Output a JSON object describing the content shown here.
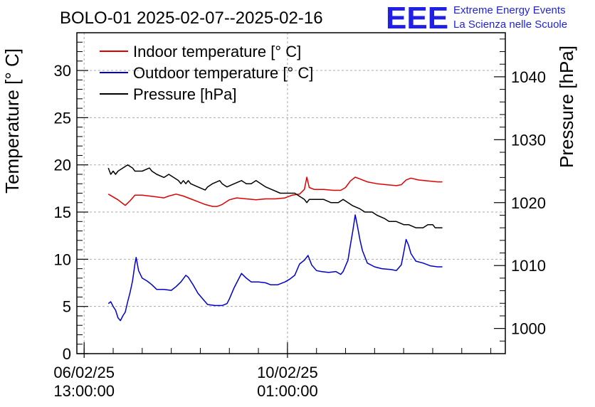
{
  "title": "BOLO-01 2025-02-07--2025-02-16",
  "brand": {
    "logo_text": "EEE",
    "line1": "Extreme Energy Events",
    "line2": "La Scienza nelle Scuole",
    "color": "#1f1fe6"
  },
  "chart_data": {
    "type": "line",
    "title": "BOLO-01 2025-02-07--2025-02-16",
    "ylabel": "Temperature [° C]",
    "y2label": "Pressure [hPa]",
    "xlabel": "",
    "xlim": [
      "2025-02-06T10:00",
      "2025-02-13T19:00"
    ],
    "ylim": [
      0,
      34
    ],
    "y2lim": [
      996,
      1047
    ],
    "grid": true,
    "legend_position": "top-left",
    "x_ticks": [
      {
        "time": "2025-02-06T13:00",
        "line1": "06/02/25",
        "line2": "13:00:00"
      },
      {
        "time": "2025-02-10T01:00",
        "line1": "10/02/25",
        "line2": "01:00:00"
      }
    ],
    "y_ticks": [
      0,
      5,
      10,
      15,
      20,
      25,
      30
    ],
    "y2_ticks": [
      1000,
      1010,
      1020,
      1030,
      1040
    ],
    "series": [
      {
        "name": "Indoor temperature [° C]",
        "axis": "left",
        "color": "#e00000",
        "points": [
          [
            "2025-02-06T23:00",
            16.9
          ],
          [
            "2025-02-07T01:00",
            16.6
          ],
          [
            "2025-02-07T03:00",
            16.3
          ],
          [
            "2025-02-07T05:00",
            15.9
          ],
          [
            "2025-02-07T06:00",
            15.7
          ],
          [
            "2025-02-07T08:00",
            16.2
          ],
          [
            "2025-02-07T10:00",
            16.8
          ],
          [
            "2025-02-07T13:00",
            16.8
          ],
          [
            "2025-02-07T16:00",
            16.7
          ],
          [
            "2025-02-07T19:00",
            16.6
          ],
          [
            "2025-02-07T22:00",
            16.5
          ],
          [
            "2025-02-08T00:00",
            16.7
          ],
          [
            "2025-02-08T03:00",
            16.9
          ],
          [
            "2025-02-08T06:00",
            16.7
          ],
          [
            "2025-02-08T09:00",
            16.4
          ],
          [
            "2025-02-08T12:00",
            16.1
          ],
          [
            "2025-02-08T15:00",
            15.8
          ],
          [
            "2025-02-08T18:00",
            15.6
          ],
          [
            "2025-02-08T20:00",
            15.6
          ],
          [
            "2025-02-08T22:00",
            15.8
          ],
          [
            "2025-02-09T01:00",
            16.3
          ],
          [
            "2025-02-09T04:00",
            16.5
          ],
          [
            "2025-02-09T08:00",
            16.4
          ],
          [
            "2025-02-09T12:00",
            16.3
          ],
          [
            "2025-02-09T16:00",
            16.4
          ],
          [
            "2025-02-09T20:00",
            16.4
          ],
          [
            "2025-02-10T00:00",
            16.5
          ],
          [
            "2025-02-10T03:00",
            16.8
          ],
          [
            "2025-02-10T06:00",
            16.9
          ],
          [
            "2025-02-10T08:00",
            17.4
          ],
          [
            "2025-02-10T09:00",
            18.7
          ],
          [
            "2025-02-10T10:00",
            17.6
          ],
          [
            "2025-02-10T12:00",
            17.4
          ],
          [
            "2025-02-10T16:00",
            17.4
          ],
          [
            "2025-02-10T20:00",
            17.3
          ],
          [
            "2025-02-10T23:00",
            17.3
          ],
          [
            "2025-02-11T01:00",
            17.6
          ],
          [
            "2025-02-11T03:00",
            18.3
          ],
          [
            "2025-02-11T05:00",
            18.7
          ],
          [
            "2025-02-11T07:00",
            18.5
          ],
          [
            "2025-02-11T10:00",
            18.2
          ],
          [
            "2025-02-11T14:00",
            18.0
          ],
          [
            "2025-02-11T18:00",
            17.9
          ],
          [
            "2025-02-11T22:00",
            17.8
          ],
          [
            "2025-02-12T00:00",
            17.9
          ],
          [
            "2025-02-12T02:00",
            18.4
          ],
          [
            "2025-02-12T04:00",
            18.6
          ],
          [
            "2025-02-12T07:00",
            18.4
          ],
          [
            "2025-02-12T11:00",
            18.3
          ],
          [
            "2025-02-12T15:00",
            18.2
          ],
          [
            "2025-02-12T17:00",
            18.2
          ]
        ]
      },
      {
        "name": "Outdoor temperature [° C]",
        "axis": "left",
        "color": "#0000cc",
        "points": [
          [
            "2025-02-06T23:00",
            5.3
          ],
          [
            "2025-02-07T00:00",
            5.5
          ],
          [
            "2025-02-07T01:00",
            5.0
          ],
          [
            "2025-02-07T02:00",
            4.6
          ],
          [
            "2025-02-07T03:00",
            3.8
          ],
          [
            "2025-02-07T04:00",
            3.5
          ],
          [
            "2025-02-07T05:00",
            4.0
          ],
          [
            "2025-02-07T06:00",
            4.4
          ],
          [
            "2025-02-07T07:00",
            5.5
          ],
          [
            "2025-02-07T08:00",
            6.5
          ],
          [
            "2025-02-07T09:00",
            7.7
          ],
          [
            "2025-02-07T10:00",
            9.5
          ],
          [
            "2025-02-07T10:30",
            10.2
          ],
          [
            "2025-02-07T11:30",
            8.8
          ],
          [
            "2025-02-07T13:00",
            8.0
          ],
          [
            "2025-02-07T15:00",
            7.7
          ],
          [
            "2025-02-07T17:00",
            7.3
          ],
          [
            "2025-02-07T19:00",
            6.8
          ],
          [
            "2025-02-07T22:00",
            6.8
          ],
          [
            "2025-02-08T01:00",
            6.7
          ],
          [
            "2025-02-08T03:00",
            7.1
          ],
          [
            "2025-02-08T05:00",
            7.6
          ],
          [
            "2025-02-08T07:00",
            8.3
          ],
          [
            "2025-02-08T08:00",
            8.1
          ],
          [
            "2025-02-08T10:00",
            7.3
          ],
          [
            "2025-02-08T12:00",
            6.4
          ],
          [
            "2025-02-08T14:00",
            5.8
          ],
          [
            "2025-02-08T16:00",
            5.2
          ],
          [
            "2025-02-08T19:00",
            5.1
          ],
          [
            "2025-02-08T22:00",
            5.1
          ],
          [
            "2025-02-09T00:00",
            5.3
          ],
          [
            "2025-02-09T01:00",
            5.8
          ],
          [
            "2025-02-09T03:00",
            7.0
          ],
          [
            "2025-02-09T05:00",
            8.0
          ],
          [
            "2025-02-09T06:00",
            8.5
          ],
          [
            "2025-02-09T08:00",
            8.0
          ],
          [
            "2025-02-09T10:00",
            7.6
          ],
          [
            "2025-02-09T13:00",
            7.6
          ],
          [
            "2025-02-09T16:00",
            7.5
          ],
          [
            "2025-02-09T18:00",
            7.3
          ],
          [
            "2025-02-09T21:00",
            7.3
          ],
          [
            "2025-02-10T00:00",
            7.6
          ],
          [
            "2025-02-10T02:00",
            7.9
          ],
          [
            "2025-02-10T04:00",
            8.3
          ],
          [
            "2025-02-10T06:00",
            9.5
          ],
          [
            "2025-02-10T08:00",
            9.9
          ],
          [
            "2025-02-10T09:30",
            10.4
          ],
          [
            "2025-02-10T11:00",
            9.4
          ],
          [
            "2025-02-10T13:00",
            8.8
          ],
          [
            "2025-02-10T15:00",
            8.7
          ],
          [
            "2025-02-10T18:00",
            8.6
          ],
          [
            "2025-02-10T21:00",
            8.7
          ],
          [
            "2025-02-10T23:00",
            8.4
          ],
          [
            "2025-02-11T00:00",
            8.7
          ],
          [
            "2025-02-11T02:00",
            9.9
          ],
          [
            "2025-02-11T03:00",
            11.5
          ],
          [
            "2025-02-11T04:00",
            13.0
          ],
          [
            "2025-02-11T05:00",
            14.7
          ],
          [
            "2025-02-11T06:00",
            13.4
          ],
          [
            "2025-02-11T07:00",
            12.0
          ],
          [
            "2025-02-11T08:00",
            10.9
          ],
          [
            "2025-02-11T10:00",
            9.6
          ],
          [
            "2025-02-11T13:00",
            9.2
          ],
          [
            "2025-02-11T16:00",
            9.0
          ],
          [
            "2025-02-11T20:00",
            8.9
          ],
          [
            "2025-02-11T22:00",
            8.8
          ],
          [
            "2025-02-12T00:00",
            9.4
          ],
          [
            "2025-02-12T01:00",
            10.7
          ],
          [
            "2025-02-12T02:00",
            12.1
          ],
          [
            "2025-02-12T03:00",
            11.5
          ],
          [
            "2025-02-12T04:00",
            10.6
          ],
          [
            "2025-02-12T06:00",
            9.8
          ],
          [
            "2025-02-12T09:00",
            9.6
          ],
          [
            "2025-02-12T12:00",
            9.3
          ],
          [
            "2025-02-12T15:00",
            9.2
          ],
          [
            "2025-02-12T17:00",
            9.2
          ]
        ]
      },
      {
        "name": "Pressure [hPa]",
        "axis": "right",
        "color": "#000000",
        "points": [
          [
            "2025-02-06T23:00",
            1025.5
          ],
          [
            "2025-02-07T00:00",
            1024.5
          ],
          [
            "2025-02-07T01:00",
            1025.0
          ],
          [
            "2025-02-07T02:00",
            1024.5
          ],
          [
            "2025-02-07T03:00",
            1025.0
          ],
          [
            "2025-02-07T05:00",
            1025.5
          ],
          [
            "2025-02-07T07:00",
            1026.0
          ],
          [
            "2025-02-07T09:00",
            1025.5
          ],
          [
            "2025-02-07T10:00",
            1025.0
          ],
          [
            "2025-02-07T13:00",
            1025.0
          ],
          [
            "2025-02-07T16:00",
            1025.5
          ],
          [
            "2025-02-07T17:00",
            1025.0
          ],
          [
            "2025-02-07T19:00",
            1024.5
          ],
          [
            "2025-02-07T22:00",
            1024.0
          ],
          [
            "2025-02-08T00:00",
            1024.5
          ],
          [
            "2025-02-08T02:00",
            1024.0
          ],
          [
            "2025-02-08T04:00",
            1023.5
          ],
          [
            "2025-02-08T05:00",
            1023.0
          ],
          [
            "2025-02-08T06:00",
            1023.5
          ],
          [
            "2025-02-08T07:00",
            1023.0
          ],
          [
            "2025-02-08T08:00",
            1023.5
          ],
          [
            "2025-02-08T09:00",
            1023.0
          ],
          [
            "2025-02-08T12:00",
            1022.5
          ],
          [
            "2025-02-08T15:00",
            1022.0
          ],
          [
            "2025-02-08T16:00",
            1022.5
          ],
          [
            "2025-02-08T18:00",
            1023.0
          ],
          [
            "2025-02-08T21:00",
            1023.5
          ],
          [
            "2025-02-08T22:00",
            1023.0
          ],
          [
            "2025-02-09T00:00",
            1022.5
          ],
          [
            "2025-02-09T03:00",
            1023.0
          ],
          [
            "2025-02-09T06:00",
            1023.5
          ],
          [
            "2025-02-09T08:00",
            1023.0
          ],
          [
            "2025-02-09T10:00",
            1023.0
          ],
          [
            "2025-02-09T12:00",
            1023.5
          ],
          [
            "2025-02-09T14:00",
            1023.0
          ],
          [
            "2025-02-09T16:00",
            1022.5
          ],
          [
            "2025-02-09T19:00",
            1022.0
          ],
          [
            "2025-02-09T22:00",
            1021.5
          ],
          [
            "2025-02-10T01:00",
            1021.5
          ],
          [
            "2025-02-10T04:00",
            1021.5
          ],
          [
            "2025-02-10T06:00",
            1021.0
          ],
          [
            "2025-02-10T08:00",
            1020.5
          ],
          [
            "2025-02-10T09:00",
            1020.0
          ],
          [
            "2025-02-10T10:00",
            1020.5
          ],
          [
            "2025-02-10T13:00",
            1020.5
          ],
          [
            "2025-02-10T16:00",
            1020.5
          ],
          [
            "2025-02-10T19:00",
            1020.0
          ],
          [
            "2025-02-10T22:00",
            1020.0
          ],
          [
            "2025-02-11T00:00",
            1020.5
          ],
          [
            "2025-02-11T02:00",
            1020.0
          ],
          [
            "2025-02-11T04:00",
            1019.5
          ],
          [
            "2025-02-11T07:00",
            1019.0
          ],
          [
            "2025-02-11T09:00",
            1018.5
          ],
          [
            "2025-02-11T12:00",
            1018.5
          ],
          [
            "2025-02-11T14:00",
            1018.0
          ],
          [
            "2025-02-11T17:00",
            1017.5
          ],
          [
            "2025-02-11T19:00",
            1017.0
          ],
          [
            "2025-02-11T22:00",
            1017.0
          ],
          [
            "2025-02-12T01:00",
            1016.5
          ],
          [
            "2025-02-12T03:00",
            1016.5
          ],
          [
            "2025-02-12T06:00",
            1016.0
          ],
          [
            "2025-02-12T09:00",
            1016.0
          ],
          [
            "2025-02-12T11:00",
            1016.5
          ],
          [
            "2025-02-12T13:00",
            1016.5
          ],
          [
            "2025-02-12T14:00",
            1016.0
          ],
          [
            "2025-02-12T17:00",
            1016.0
          ]
        ]
      }
    ]
  }
}
